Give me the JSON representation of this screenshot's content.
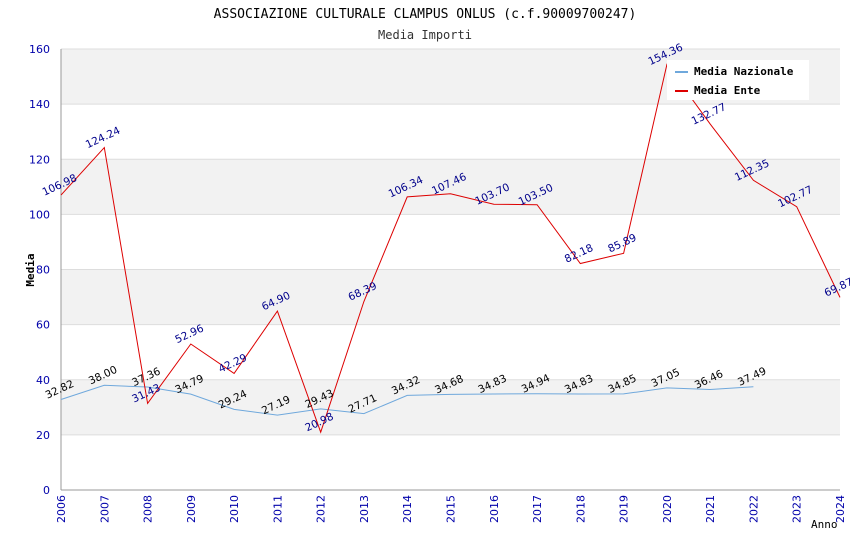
{
  "chart_data": {
    "type": "line",
    "title": "ASSOCIAZIONE CULTURALE CLAMPUS ONLUS (c.f.90009700247)",
    "subtitle": "Media Importi",
    "xlabel": "Anno",
    "ylabel": "Media",
    "x": [
      "2006",
      "2007",
      "2008",
      "2009",
      "2010",
      "2011",
      "2012",
      "2013",
      "2014",
      "2015",
      "2016",
      "2017",
      "2018",
      "2019",
      "2020",
      "2021",
      "2022",
      "2023",
      "2024"
    ],
    "ylim": [
      0,
      160
    ],
    "yticks": [
      0,
      20,
      40,
      60,
      80,
      100,
      120,
      140,
      160
    ],
    "grid": "horizontal bands",
    "legend": "top-right",
    "series": [
      {
        "name": "Media Nazionale",
        "color": "#6fa8dc",
        "values": [
          32.82,
          38.0,
          37.36,
          34.79,
          29.24,
          27.19,
          29.43,
          27.71,
          34.32,
          34.68,
          34.83,
          34.94,
          34.83,
          34.85,
          37.05,
          36.46,
          37.49,
          null,
          null
        ],
        "labels": [
          "32.82",
          "38.00",
          "37.36",
          "34.79",
          "29.24",
          "27.19",
          "29.43",
          "27.71",
          "34.32",
          "34.68",
          "34.83",
          "34.94",
          "34.83",
          "34.85",
          "37.05",
          "36.46",
          "37.49",
          "",
          ""
        ]
      },
      {
        "name": "Media Ente",
        "color": "#dd0000",
        "values": [
          106.98,
          124.24,
          31.43,
          52.96,
          42.29,
          64.9,
          20.98,
          68.39,
          106.34,
          107.46,
          103.7,
          103.5,
          82.18,
          85.89,
          154.36,
          132.77,
          112.35,
          102.77,
          69.87
        ],
        "labels": [
          "106.98",
          "124.24",
          "31.43",
          "52.96",
          "42.29",
          "64.90",
          "20.98",
          "68.39",
          "106.34",
          "107.46",
          "103.70",
          "103.50",
          "82.18",
          "85.89",
          "154.36",
          "132.77",
          "112.35",
          "102.77",
          "69.87"
        ]
      }
    ]
  }
}
